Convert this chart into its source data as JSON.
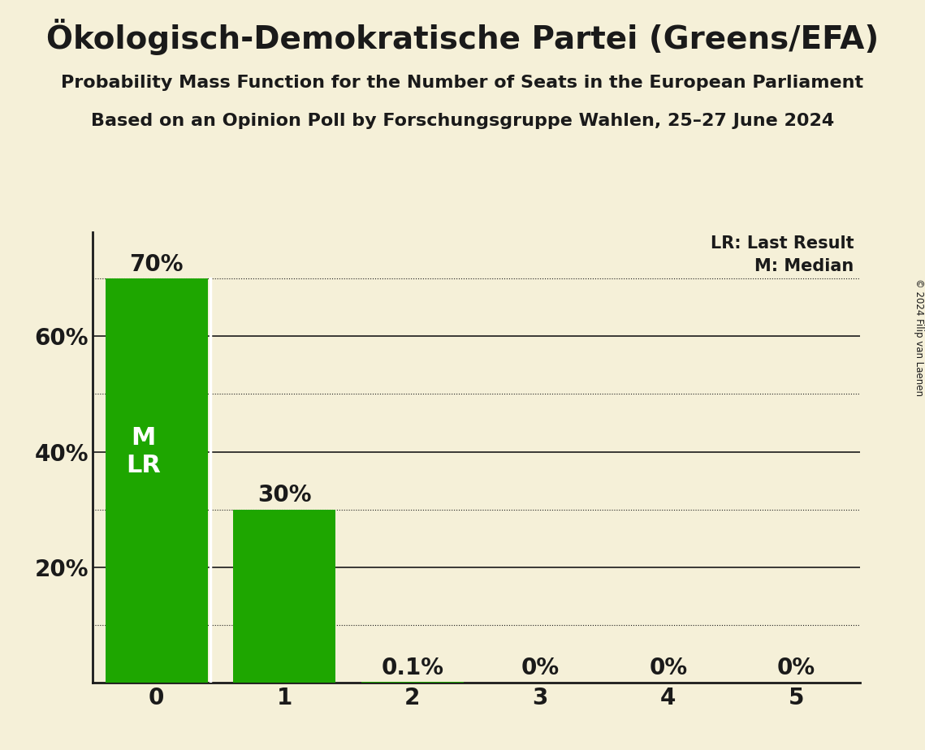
{
  "title": "Ökologisch-Demokratische Partei (Greens/EFA)",
  "subtitle1": "Probability Mass Function for the Number of Seats in the European Parliament",
  "subtitle2": "Based on an Opinion Poll by Forschungsgruppe Wahlen, 25–27 June 2024",
  "copyright": "© 2024 Filip van Laenen",
  "categories": [
    0,
    1,
    2,
    3,
    4,
    5
  ],
  "values": [
    0.7,
    0.3,
    0.001,
    0.0,
    0.0,
    0.0
  ],
  "bar_labels": [
    "70%",
    "30%",
    "0.1%",
    "0%",
    "0%",
    "0%"
  ],
  "bar_color": "#1ea600",
  "background_color": "#f5f0d8",
  "text_color": "#1a1a1a",
  "bar_label_color_outside": "#1a1a1a",
  "median_seat": 0,
  "last_result_seat": 0,
  "ylim": [
    0,
    0.78
  ],
  "ytick_positions": [
    0.2,
    0.4,
    0.6
  ],
  "ytick_labels": [
    "20%",
    "40%",
    "60%"
  ],
  "solid_yticks": [
    0.2,
    0.4,
    0.6
  ],
  "dotted_yticks": [
    0.1,
    0.3,
    0.5,
    0.7
  ],
  "legend_lr": "LR: Last Result",
  "legend_m": "M: Median",
  "title_fontsize": 28,
  "subtitle_fontsize": 16,
  "axis_label_fontsize": 20,
  "bar_label_fontsize": 20,
  "legend_fontsize": 15,
  "ml_label_fontsize": 22
}
